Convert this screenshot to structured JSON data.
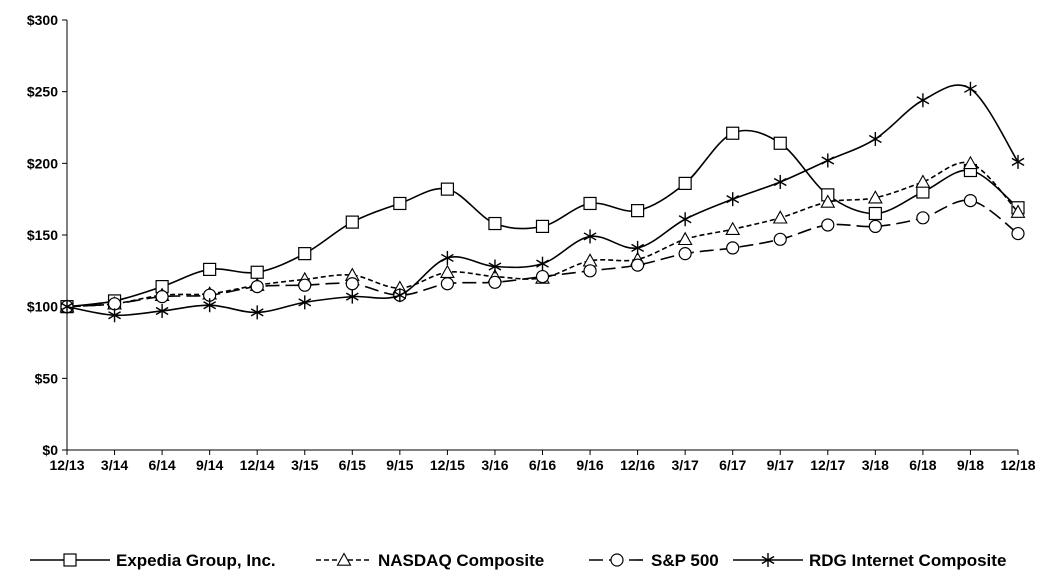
{
  "chart_data": {
    "type": "line",
    "title": "",
    "xlabel": "",
    "ylabel": "",
    "ylim": [
      0,
      300
    ],
    "y_ticks": [
      0,
      50,
      100,
      150,
      200,
      250,
      300
    ],
    "y_tick_labels": [
      "$0",
      "$50",
      "$100",
      "$150",
      "$200",
      "$250",
      "$300"
    ],
    "categories": [
      "12/13",
      "3/14",
      "6/14",
      "9/14",
      "12/14",
      "3/15",
      "6/15",
      "9/15",
      "12/15",
      "3/16",
      "6/16",
      "9/16",
      "12/16",
      "3/17",
      "6/17",
      "9/17",
      "12/17",
      "3/18",
      "6/18",
      "9/18",
      "12/18"
    ],
    "grid": false,
    "legend_position": "bottom",
    "series": [
      {
        "name": "Expedia Group, Inc.",
        "marker": "square",
        "dash": "solid",
        "values": [
          100,
          104,
          114,
          126,
          124,
          137,
          159,
          172,
          182,
          158,
          156,
          172,
          167,
          186,
          221,
          214,
          178,
          165,
          180,
          195,
          169
        ]
      },
      {
        "name": "NASDAQ Composite",
        "marker": "triangle",
        "dash": "dashed",
        "values": [
          100,
          102,
          108,
          109,
          115,
          119,
          122,
          113,
          124,
          121,
          120,
          132,
          133,
          147,
          154,
          162,
          173,
          176,
          187,
          200,
          166
        ]
      },
      {
        "name": "S&P 500",
        "marker": "circle",
        "dash": "longdash",
        "values": [
          100,
          102,
          107,
          108,
          114,
          115,
          116,
          108,
          116,
          117,
          121,
          125,
          129,
          137,
          141,
          147,
          157,
          156,
          162,
          174,
          151
        ]
      },
      {
        "name": "RDG Internet Composite",
        "marker": "asterisk",
        "dash": "solid",
        "values": [
          100,
          94,
          97,
          101,
          96,
          103,
          107,
          108,
          134,
          128,
          130,
          149,
          141,
          161,
          175,
          187,
          202,
          217,
          244,
          252,
          201
        ]
      }
    ]
  }
}
